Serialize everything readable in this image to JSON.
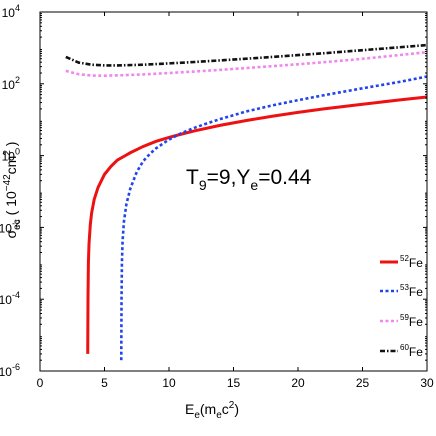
{
  "chart_data": {
    "type": "line",
    "xlabel": {
      "main": "E",
      "sub": "e",
      "rest": "(m",
      "sub2": "e",
      "rest2": "c",
      "sup": "2",
      "close": ")"
    },
    "ylabel": {
      "main": "σ",
      "sub": "ec",
      "rest": " ( 10",
      "sup": "−42",
      "rest2": "cm",
      "sup2": "2",
      "close": " )"
    },
    "annotation": {
      "T": "T",
      "Tsub": "9",
      "eq1": "=9,Y",
      "Ysub": "e",
      "eq2": "=0.44"
    },
    "xlim": [
      0,
      30
    ],
    "ylim_log10": [
      -6,
      4
    ],
    "yscale": "log",
    "x_ticks": [
      {
        "value": 0,
        "label": "0"
      },
      {
        "value": 5,
        "label": "5"
      },
      {
        "value": 10,
        "label": "10"
      },
      {
        "value": 15,
        "label": "15"
      },
      {
        "value": 20,
        "label": "20"
      },
      {
        "value": 25,
        "label": "25"
      },
      {
        "value": 30,
        "label": "30"
      }
    ],
    "y_ticks": [
      {
        "value": 1e-06,
        "base": "10",
        "exp": "-6"
      },
      {
        "value": 0.0001,
        "base": "10",
        "exp": "-4"
      },
      {
        "value": 0.01,
        "base": "10",
        "exp": "-2"
      },
      {
        "value": 1,
        "base": "10",
        "exp": "0"
      },
      {
        "value": 100,
        "base": "10",
        "exp": "2"
      },
      {
        "value": 10000,
        "base": "10",
        "exp": "4"
      }
    ],
    "legend_position": "bottom-right",
    "series": [
      {
        "name": "Fe",
        "mass": "52",
        "color": "#ee1111",
        "dash": "solid",
        "x": [
          3.7,
          3.72,
          3.75,
          3.8,
          3.9,
          4.0,
          4.2,
          4.5,
          5.0,
          5.5,
          6.0,
          7.0,
          8.0,
          9.0,
          10.0,
          11.0,
          12.0,
          14.0,
          16.0,
          18.0,
          20.0,
          22.0,
          25.0,
          28.0,
          30.0
        ],
        "y": [
          3e-06,
          0.0001,
          0.001,
          0.0035,
          0.012,
          0.025,
          0.06,
          0.13,
          0.3,
          0.5,
          0.75,
          1.2,
          1.8,
          2.5,
          3.2,
          4.0,
          4.9,
          7.0,
          9.5,
          12.5,
          16.0,
          20.0,
          27.0,
          36.0,
          43.0
        ]
      },
      {
        "name": "Fe",
        "mass": "53",
        "color": "#2244ee",
        "dash": "dotted",
        "x": [
          6.3,
          6.32,
          6.35,
          6.4,
          6.5,
          6.7,
          7.0,
          7.5,
          8.0,
          8.5,
          9.0,
          10.0,
          11.0,
          12.0,
          13.0,
          14.0,
          16.0,
          18.0,
          20.0,
          22.0,
          25.0,
          28.0,
          30.0
        ],
        "y": [
          2e-06,
          0.0001,
          0.001,
          0.004,
          0.014,
          0.045,
          0.12,
          0.35,
          0.7,
          1.1,
          1.6,
          2.8,
          4.3,
          6.0,
          8.0,
          10.5,
          17.0,
          25.0,
          35.0,
          48.0,
          75.0,
          115.0,
          160.0
        ]
      },
      {
        "name": "Fe",
        "mass": "59",
        "color": "#ee88ee",
        "dash": "dotted",
        "x": [
          2.0,
          3.0,
          4.0,
          5.0,
          6.0,
          8.0,
          10.0,
          12.0,
          14.0,
          16.0,
          18.0,
          20.0,
          22.0,
          24.0,
          26.0,
          28.0,
          30.0
        ],
        "y": [
          230,
          185,
          170,
          168,
          172,
          182,
          200,
          220,
          245,
          275,
          310,
          350,
          400,
          460,
          540,
          640,
          760
        ]
      },
      {
        "name": "Fe",
        "mass": "60",
        "color": "#111111",
        "dash": "dashdot",
        "x": [
          2.0,
          3.0,
          4.0,
          5.0,
          6.0,
          8.0,
          10.0,
          12.0,
          14.0,
          16.0,
          18.0,
          20.0,
          22.0,
          24.0,
          26.0,
          28.0,
          30.0
        ],
        "y": [
          560,
          390,
          340,
          325,
          325,
          340,
          370,
          405,
          450,
          500,
          560,
          630,
          710,
          810,
          920,
          1050,
          1200
        ]
      }
    ]
  }
}
